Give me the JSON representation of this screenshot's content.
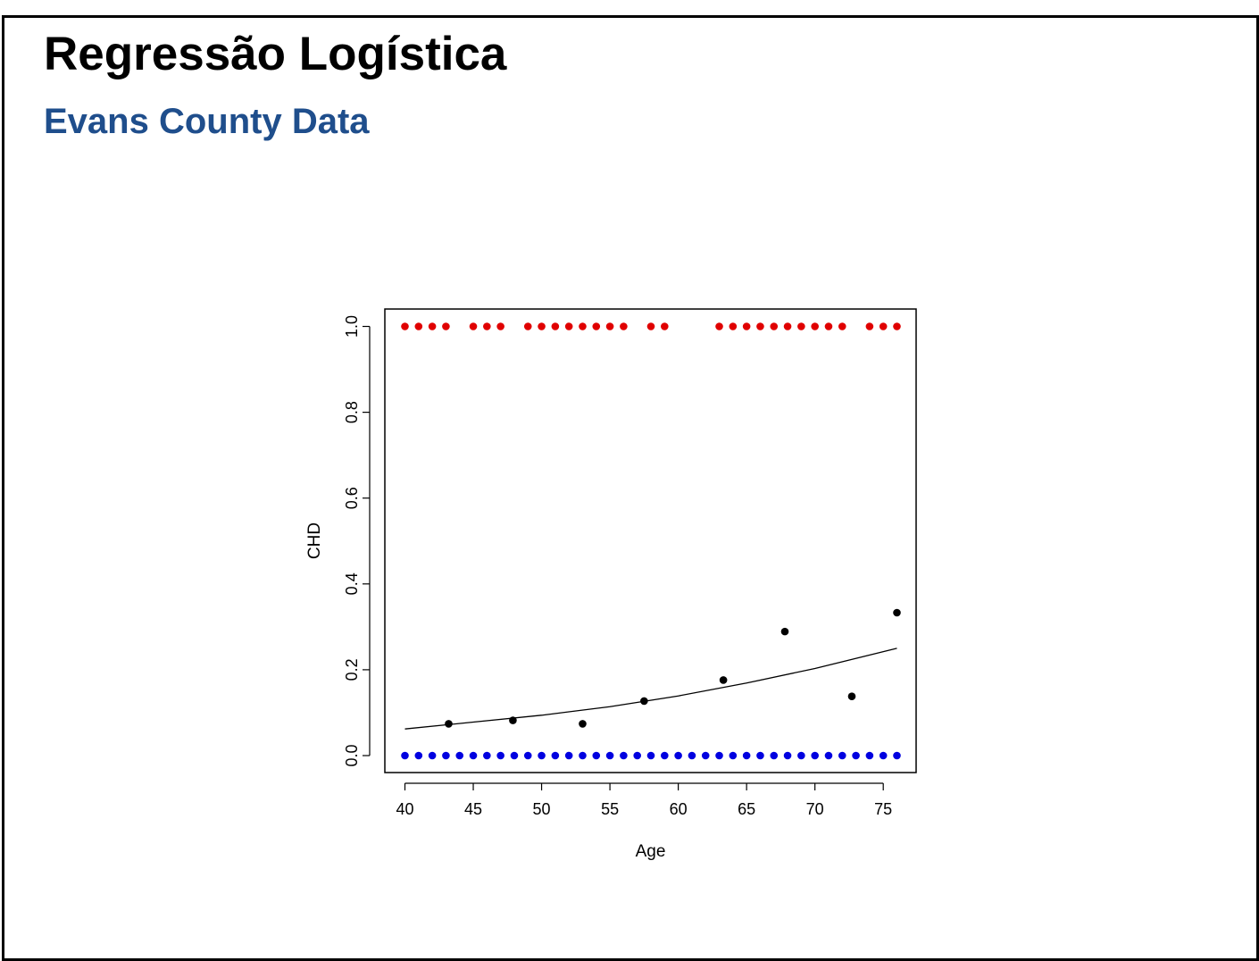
{
  "slide": {
    "title": "Regressão Logística",
    "subtitle": "Evans County Data",
    "subtitle_color": "#1f4e8c"
  },
  "chart_data": {
    "type": "scatter",
    "xlabel": "Age",
    "ylabel": "CHD",
    "xlim": [
      40,
      76
    ],
    "ylim": [
      0,
      1
    ],
    "xticks": [
      "40",
      "45",
      "50",
      "55",
      "60",
      "65",
      "70",
      "75"
    ],
    "yticks": [
      "0.0",
      "0.2",
      "0.4",
      "0.6",
      "0.8",
      "1.0"
    ],
    "grid": false,
    "legend": "none",
    "series": [
      {
        "color": "#e00000",
        "marker": "point",
        "x": [
          40,
          41,
          42,
          43,
          45,
          46,
          47,
          49,
          50,
          51,
          52,
          53,
          54,
          55,
          56,
          58,
          59,
          63,
          64,
          65,
          66,
          67,
          68,
          69,
          70,
          71,
          72,
          74,
          75,
          76
        ],
        "y": [
          1,
          1,
          1,
          1,
          1,
          1,
          1,
          1,
          1,
          1,
          1,
          1,
          1,
          1,
          1,
          1,
          1,
          1,
          1,
          1,
          1,
          1,
          1,
          1,
          1,
          1,
          1,
          1,
          1,
          1
        ]
      },
      {
        "color": "#0000e0",
        "marker": "point",
        "x": [
          40,
          41,
          42,
          43,
          44,
          45,
          46,
          47,
          48,
          49,
          50,
          51,
          52,
          53,
          54,
          55,
          56,
          57,
          58,
          59,
          60,
          61,
          62,
          63,
          64,
          65,
          66,
          67,
          68,
          69,
          70,
          71,
          72,
          73,
          74,
          75,
          76
        ],
        "y": [
          0,
          0,
          0,
          0,
          0,
          0,
          0,
          0,
          0,
          0,
          0,
          0,
          0,
          0,
          0,
          0,
          0,
          0,
          0,
          0,
          0,
          0,
          0,
          0,
          0,
          0,
          0,
          0,
          0,
          0,
          0,
          0,
          0,
          0,
          0,
          0,
          0
        ]
      },
      {
        "color": "#000000",
        "marker": "point",
        "x": [
          43.2,
          47.9,
          53.0,
          57.5,
          63.3,
          67.8,
          72.7,
          76.0
        ],
        "y": [
          0.074,
          0.082,
          0.074,
          0.127,
          0.176,
          0.289,
          0.138,
          0.333
        ]
      },
      {
        "color": "#000000",
        "line": true,
        "x": [
          40,
          45,
          50,
          55,
          60,
          65,
          70,
          76
        ],
        "y": [
          0.062,
          0.078,
          0.094,
          0.114,
          0.139,
          0.169,
          0.203,
          0.25
        ]
      }
    ]
  }
}
